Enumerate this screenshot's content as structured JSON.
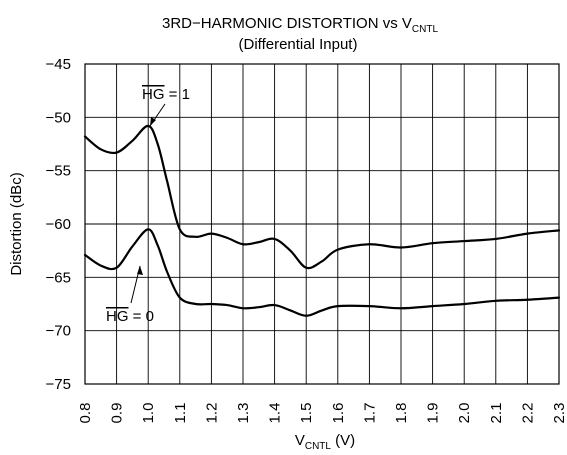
{
  "chart_data": {
    "type": "line",
    "title": {
      "main": "3RD−HARMONIC DISTORTION vs V",
      "main_sub": "CNTL",
      "subtitle": "(Differential Input)"
    },
    "xlabel": {
      "main": "V",
      "sub": "CNTL",
      "suffix": " (V)"
    },
    "ylabel": "Distortion (dBc)",
    "xlim": [
      0.8,
      2.3
    ],
    "ylim": [
      -75,
      -45
    ],
    "grid": true,
    "x_ticks": [
      "0.8",
      "0.9",
      "1.0",
      "1.1",
      "1.2",
      "1.3",
      "1.4",
      "1.5",
      "1.6",
      "1.7",
      "1.8",
      "1.9",
      "2.0",
      "2.1",
      "2.2",
      "2.3"
    ],
    "y_ticks": [
      "−45",
      "−50",
      "−55",
      "−60",
      "−65",
      "−70",
      "−75"
    ],
    "series": [
      {
        "name": "HG = 1",
        "label_overline": "HG",
        "label_rest": " = 1",
        "x": [
          0.8,
          0.85,
          0.9,
          0.95,
          1.0,
          1.03,
          1.06,
          1.1,
          1.15,
          1.2,
          1.25,
          1.3,
          1.35,
          1.4,
          1.45,
          1.5,
          1.55,
          1.6,
          1.7,
          1.8,
          1.9,
          2.0,
          2.1,
          2.2,
          2.3
        ],
        "y": [
          -51.8,
          -53.0,
          -53.3,
          -52.2,
          -50.8,
          -52.5,
          -56.0,
          -60.5,
          -61.2,
          -60.9,
          -61.3,
          -61.9,
          -61.7,
          -61.4,
          -62.5,
          -64.1,
          -63.5,
          -62.4,
          -61.9,
          -62.2,
          -61.8,
          -61.6,
          -61.4,
          -60.9,
          -60.6
        ]
      },
      {
        "name": "HG = 0",
        "label_overline": "HG",
        "label_rest": " = 0",
        "x": [
          0.8,
          0.85,
          0.9,
          0.95,
          1.0,
          1.03,
          1.06,
          1.1,
          1.15,
          1.2,
          1.25,
          1.3,
          1.35,
          1.4,
          1.45,
          1.5,
          1.55,
          1.6,
          1.7,
          1.8,
          1.9,
          2.0,
          2.1,
          2.2,
          2.3
        ],
        "y": [
          -62.9,
          -63.9,
          -64.1,
          -62.1,
          -60.5,
          -62.0,
          -64.5,
          -66.9,
          -67.5,
          -67.5,
          -67.6,
          -67.9,
          -67.8,
          -67.6,
          -68.1,
          -68.6,
          -68.1,
          -67.7,
          -67.7,
          -67.9,
          -67.7,
          -67.5,
          -67.2,
          -67.1,
          -66.9
        ]
      }
    ]
  }
}
